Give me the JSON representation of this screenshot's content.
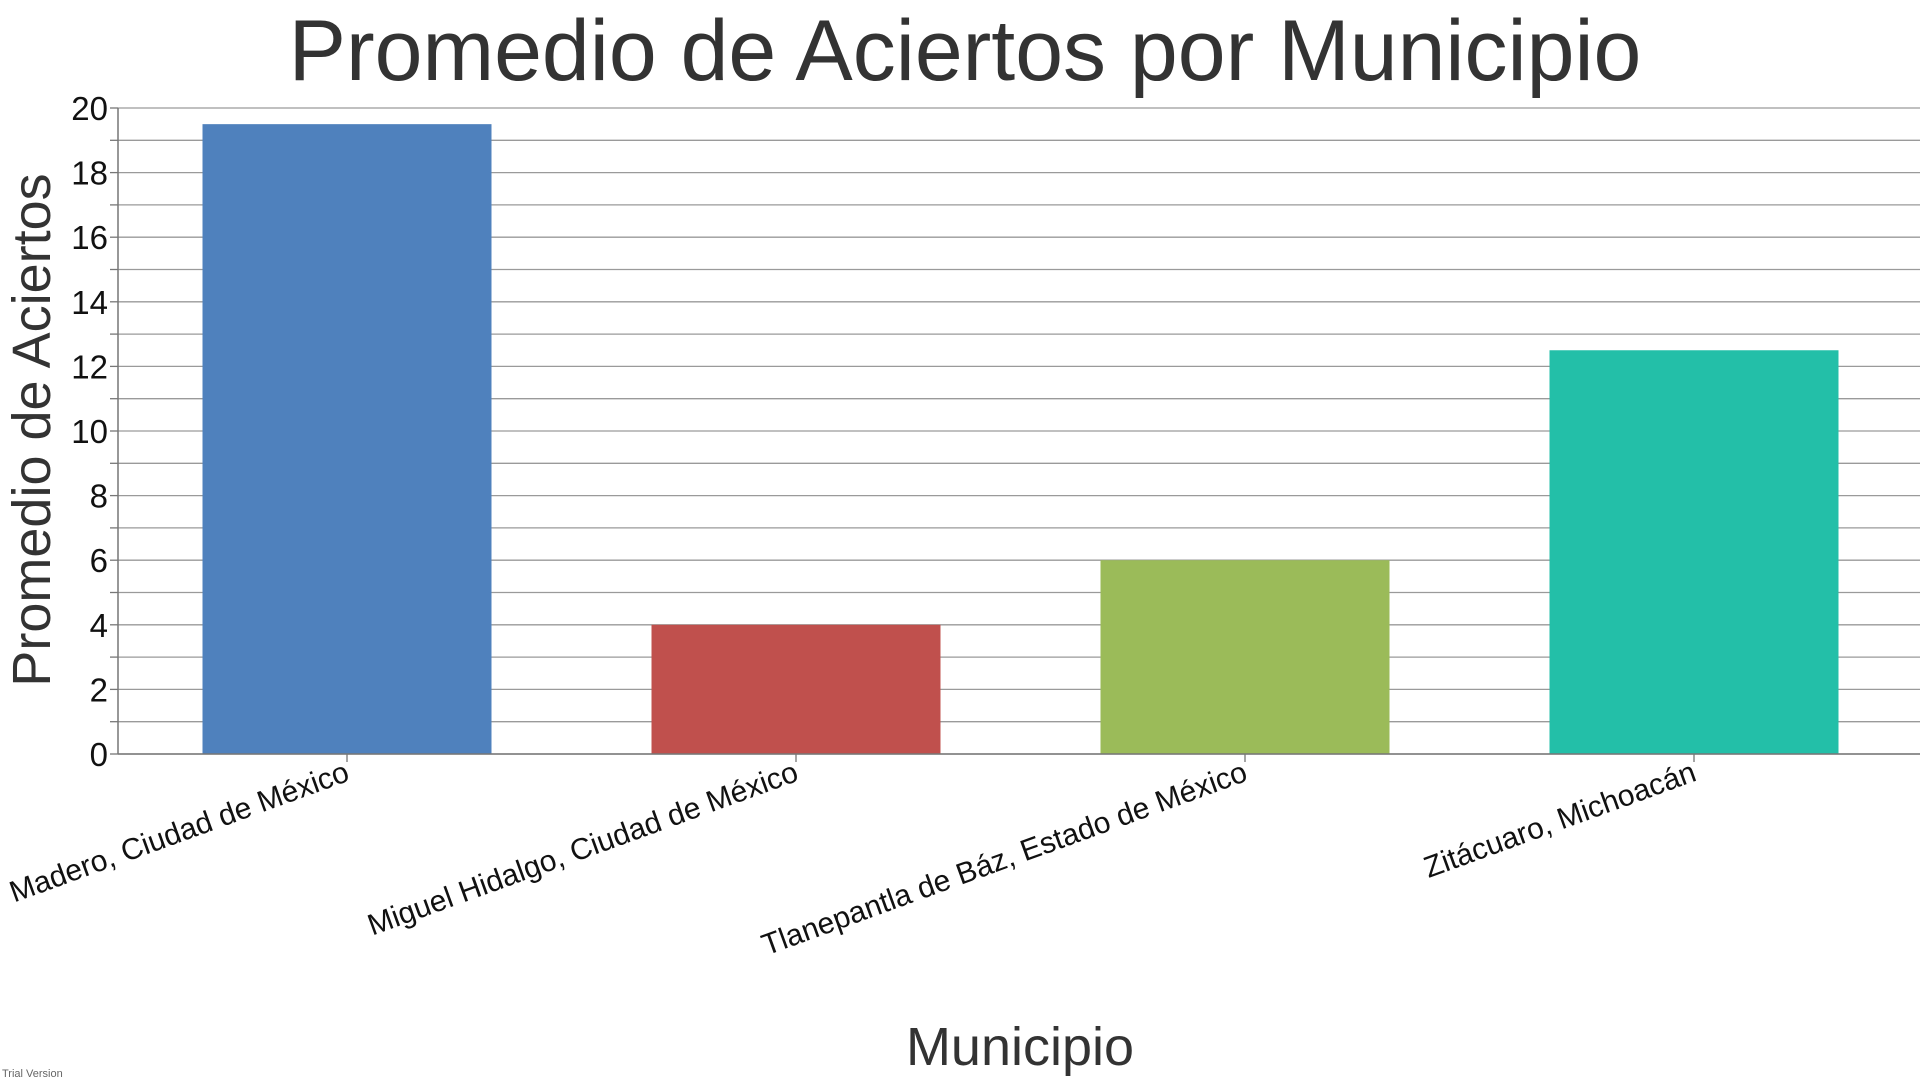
{
  "chart_data": {
    "type": "bar",
    "title": "Promedio de Aciertos por Municipio",
    "xlabel": "Municipio",
    "ylabel": "Promedio de Aciertos",
    "categories": [
      "Madero, Ciudad de México",
      "Miguel Hidalgo, Ciudad de México",
      "Tlanepantla de Báz, Estado de México",
      "Zitácuaro, Michoacán"
    ],
    "values": [
      19.5,
      4,
      6,
      12.5
    ],
    "colors": [
      "#4F81BD",
      "#C0504D",
      "#9BBB59",
      "#23BFA8"
    ],
    "ylim": [
      0,
      20
    ],
    "yticks": [
      "0",
      "2",
      "4",
      "6",
      "8",
      "10",
      "12",
      "14",
      "16",
      "18",
      "20"
    ],
    "grid": true,
    "legend": "none"
  },
  "watermark": "Trial Version"
}
